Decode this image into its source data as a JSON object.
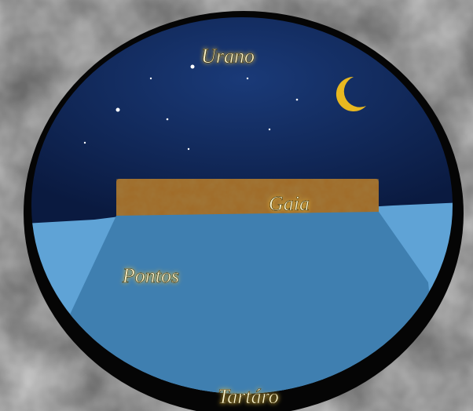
{
  "regions": [
    {
      "label": "Urano"
    },
    {
      "label": "Gaia"
    },
    {
      "label": "Pontos"
    },
    {
      "label": "Tartáro"
    }
  ]
}
